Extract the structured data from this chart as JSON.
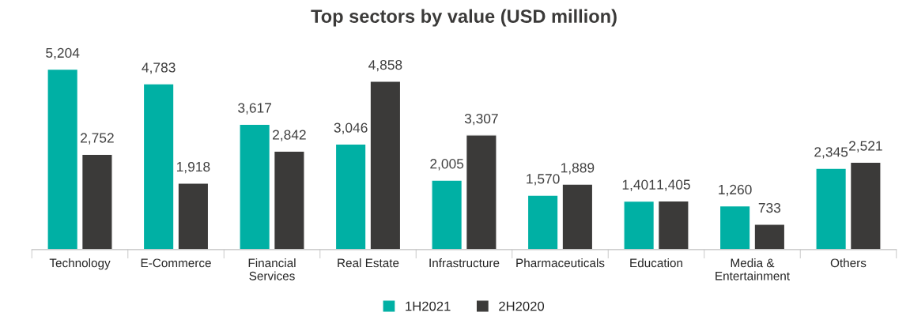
{
  "chart_data": {
    "type": "bar",
    "title": "Top sectors by value (USD million)",
    "categories": [
      "Technology",
      "E-Commerce",
      "Financial\nServices",
      "Real Estate",
      "Infrastructure",
      "Pharmaceuticals",
      "Education",
      "Media &\nEntertainment",
      "Others"
    ],
    "series": [
      {
        "name": "1H2021",
        "color": "#00b0a4",
        "values": [
          5204,
          4783,
          3617,
          3046,
          2005,
          1570,
          1401,
          1260,
          2345
        ],
        "value_labels": [
          "5,204",
          "4,783",
          "3,617",
          "3,046",
          "2,005",
          "1,570",
          "1,401",
          "1,260",
          "2,345"
        ]
      },
      {
        "name": "2H2020",
        "color": "#3b3a39",
        "values": [
          2752,
          1918,
          2842,
          4858,
          3307,
          1889,
          1405,
          733,
          2521
        ],
        "value_labels": [
          "2,752",
          "1,918",
          "2,842",
          "4,858",
          "3,307",
          "1,889",
          "1,405",
          "733",
          "2,521"
        ]
      }
    ],
    "legend": "bottom",
    "grid": false
  }
}
